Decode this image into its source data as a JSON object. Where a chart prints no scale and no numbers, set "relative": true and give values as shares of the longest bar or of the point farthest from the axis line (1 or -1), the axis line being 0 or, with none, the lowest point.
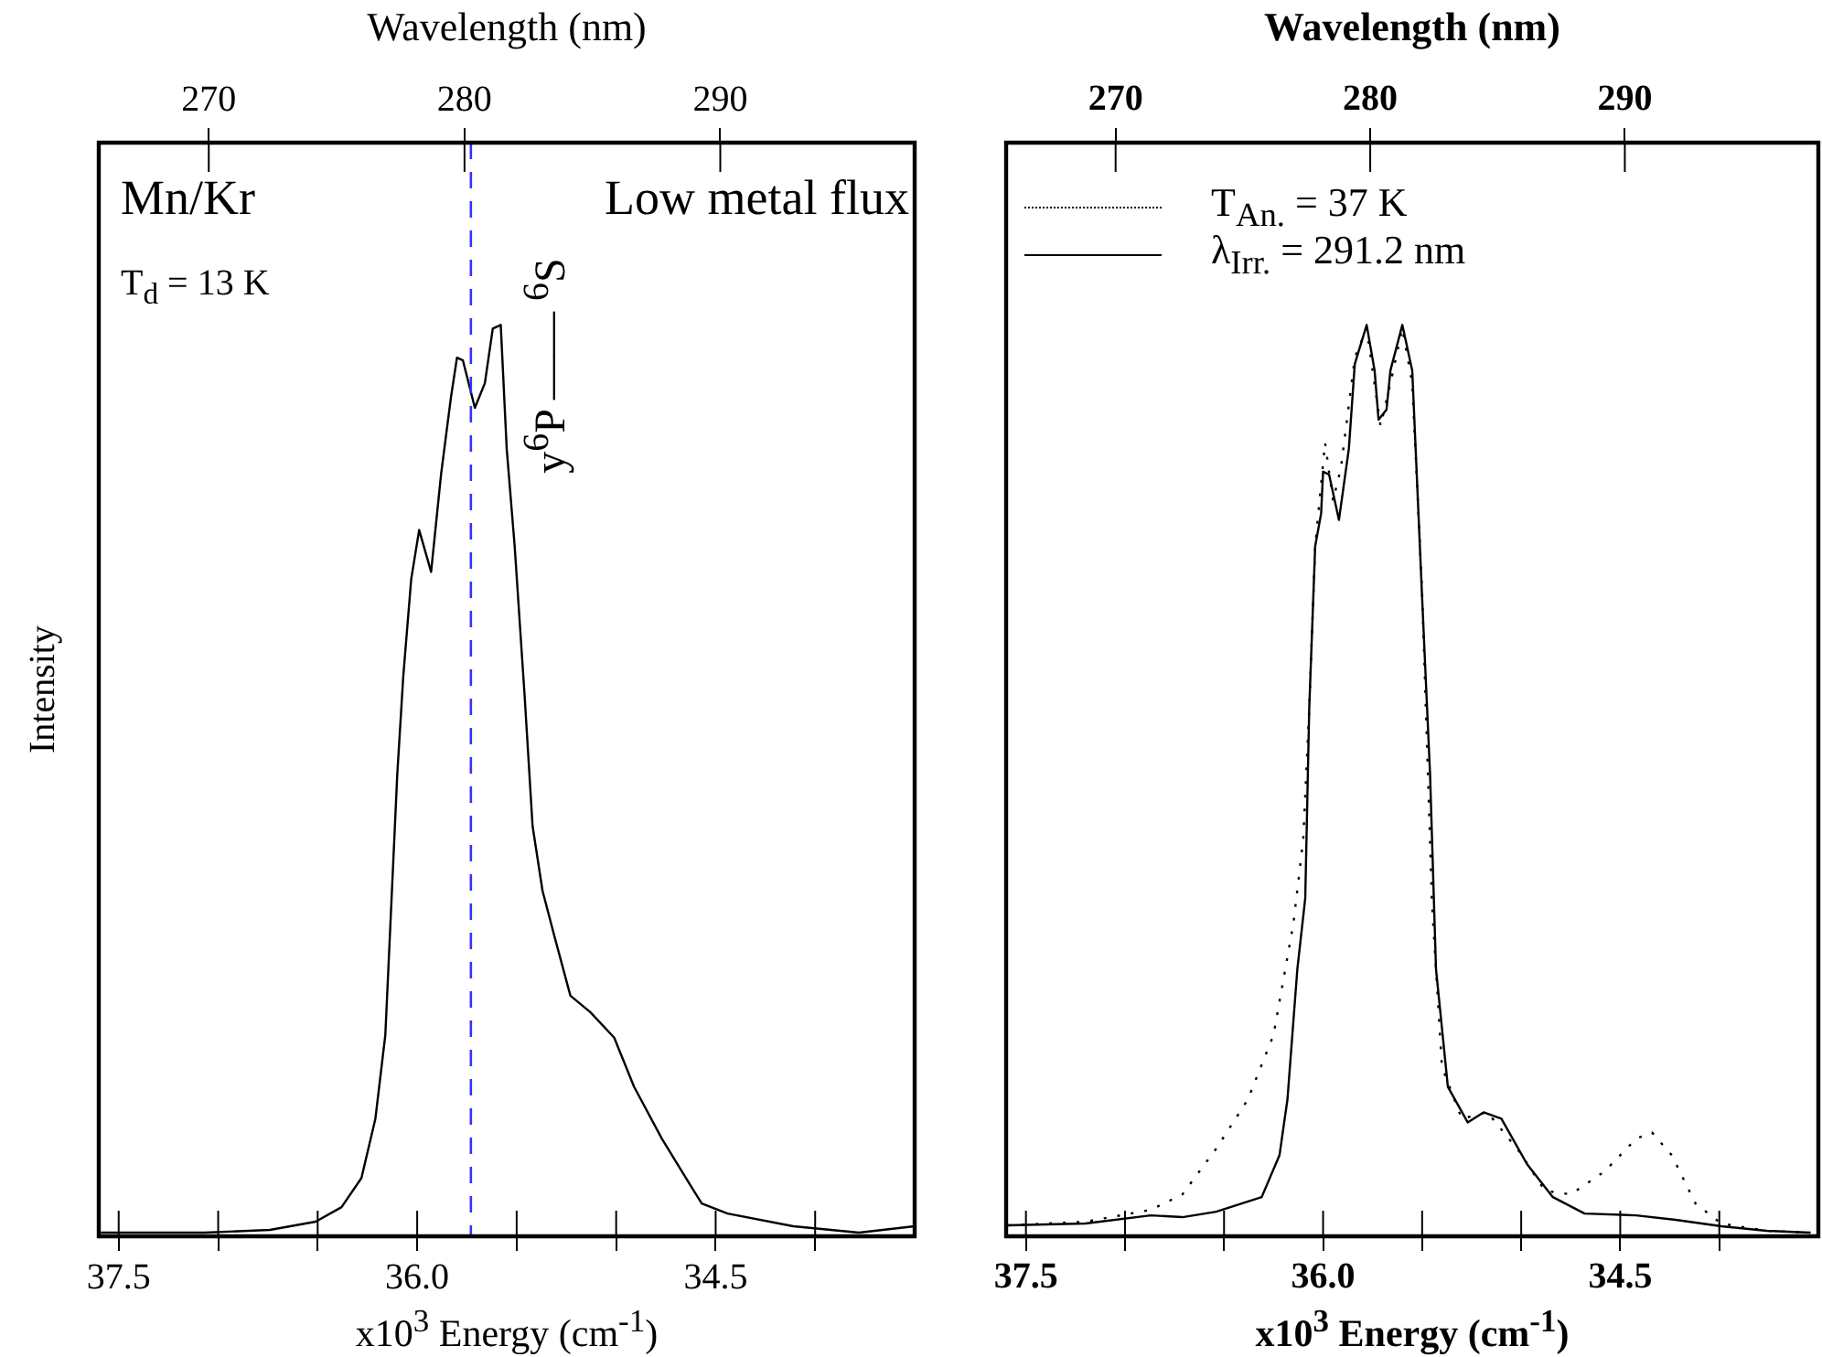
{
  "chart_data": [
    {
      "type": "line",
      "xlabel": "x10$^{3}$ Energy (cm$^{-1}$)",
      "ylabel": "Intensity",
      "x2label": "Wavelength (nm)",
      "relative": true,
      "xlim": [
        37.6,
        33.5
      ],
      "xticks": [
        {
          "value": 37.5,
          "label": "37.5"
        },
        {
          "value": 37.0,
          "label": null
        },
        {
          "value": 36.5,
          "label": null
        },
        {
          "value": 36.0,
          "label": "36.0"
        },
        {
          "value": 35.5,
          "label": null
        },
        {
          "value": 35.0,
          "label": null
        },
        {
          "value": 34.5,
          "label": "34.5"
        },
        {
          "value": 34.0,
          "label": null
        }
      ],
      "x2lim": [
        265.7,
        297.6
      ],
      "x2ticks": [
        270,
        280,
        290
      ],
      "annotations": [
        "Mn/Kr",
        "Low metal flux",
        "T$_{d}$ = 13 K"
      ],
      "ref_lines": [
        {
          "axis": "x",
          "value": 35.73,
          "label": "y$^{6}$P —— $^{6}$S",
          "color": "#3333ff",
          "line_style": "dashed"
        }
      ],
      "series": [
        {
          "color": "#000000",
          "line_style": "solid",
          "x": [
            37.59,
            37.07,
            36.74,
            36.51,
            36.38,
            36.28,
            36.21,
            36.16,
            36.13,
            36.1,
            36.07,
            36.03,
            35.99,
            35.93,
            35.88,
            35.83,
            35.8,
            35.77,
            35.71,
            35.66,
            35.62,
            35.58,
            35.55,
            35.51,
            35.46,
            35.42,
            35.37,
            35.31,
            35.23,
            35.13,
            35.01,
            34.91,
            34.77,
            34.63,
            34.57,
            34.44,
            34.11,
            33.78,
            33.5
          ],
          "values": [
            0.004,
            0.004,
            0.007,
            0.016,
            0.032,
            0.064,
            0.129,
            0.221,
            0.364,
            0.507,
            0.614,
            0.721,
            0.775,
            0.729,
            0.836,
            0.921,
            0.964,
            0.961,
            0.909,
            0.936,
            0.996,
            1.0,
            0.864,
            0.757,
            0.593,
            0.45,
            0.379,
            0.329,
            0.264,
            0.246,
            0.218,
            0.164,
            0.107,
            0.057,
            0.036,
            0.025,
            0.011,
            0.004,
            0.011
          ]
        }
      ]
    },
    {
      "type": "line",
      "xlabel": "x10$^{3}$ Energy (cm$^{-1}$)",
      "x2label": "Wavelength (nm)",
      "relative": true,
      "legend": "top left",
      "xlim": [
        37.6,
        33.5
      ],
      "xticks": [
        {
          "value": 37.5,
          "label": "37.5"
        },
        {
          "value": 37.0,
          "label": null
        },
        {
          "value": 36.5,
          "label": null
        },
        {
          "value": 36.0,
          "label": "36.0"
        },
        {
          "value": 35.5,
          "label": null
        },
        {
          "value": 35.0,
          "label": null
        },
        {
          "value": 34.5,
          "label": "34.5"
        },
        {
          "value": 34.0,
          "label": null
        }
      ],
      "x2lim": [
        265.7,
        297.6
      ],
      "x2ticks": [
        270,
        280,
        290
      ],
      "series": [
        {
          "name": "T$_{An.}$ = 37 K",
          "color": "#000000",
          "line_style": "dotted",
          "x": [
            37.59,
            37.2,
            36.87,
            36.71,
            36.54,
            36.38,
            36.25,
            36.15,
            36.1,
            36.07,
            36.04,
            35.99,
            35.95,
            35.91,
            35.84,
            35.78,
            35.71,
            35.66,
            35.6,
            35.55,
            35.5,
            35.45,
            35.4,
            35.3,
            35.17,
            35.01,
            34.88,
            34.75,
            34.58,
            34.42,
            34.34,
            34.24,
            34.12,
            33.99,
            33.76,
            33.54
          ],
          "values": [
            0.012,
            0.016,
            0.029,
            0.046,
            0.096,
            0.15,
            0.221,
            0.343,
            0.436,
            0.579,
            0.757,
            0.871,
            0.807,
            0.843,
            0.964,
            0.996,
            0.889,
            0.936,
            0.996,
            0.936,
            0.707,
            0.364,
            0.186,
            0.129,
            0.136,
            0.093,
            0.05,
            0.046,
            0.071,
            0.107,
            0.114,
            0.089,
            0.036,
            0.014,
            0.006,
            0.004
          ]
        },
        {
          "name": "λ$_{Irr.}$ = 291.2 nm",
          "color": "#000000",
          "line_style": "solid",
          "x": [
            37.59,
            37.2,
            36.87,
            36.71,
            36.54,
            36.31,
            36.22,
            36.18,
            36.13,
            36.09,
            36.07,
            36.04,
            36.01,
            36.0,
            35.97,
            35.92,
            35.87,
            35.84,
            35.78,
            35.74,
            35.72,
            35.68,
            35.66,
            35.6,
            35.55,
            35.5,
            35.46,
            35.43,
            35.37,
            35.27,
            35.19,
            35.1,
            34.97,
            34.84,
            34.68,
            34.42,
            34.22,
            33.99,
            33.76,
            33.54
          ],
          "values": [
            0.012,
            0.014,
            0.023,
            0.021,
            0.027,
            0.043,
            0.089,
            0.15,
            0.293,
            0.371,
            0.579,
            0.757,
            0.793,
            0.839,
            0.836,
            0.786,
            0.864,
            0.957,
            1.0,
            0.95,
            0.896,
            0.907,
            0.95,
            1.0,
            0.95,
            0.7,
            0.507,
            0.293,
            0.164,
            0.125,
            0.136,
            0.129,
            0.079,
            0.043,
            0.025,
            0.023,
            0.018,
            0.011,
            0.006,
            0.004
          ]
        }
      ]
    }
  ]
}
